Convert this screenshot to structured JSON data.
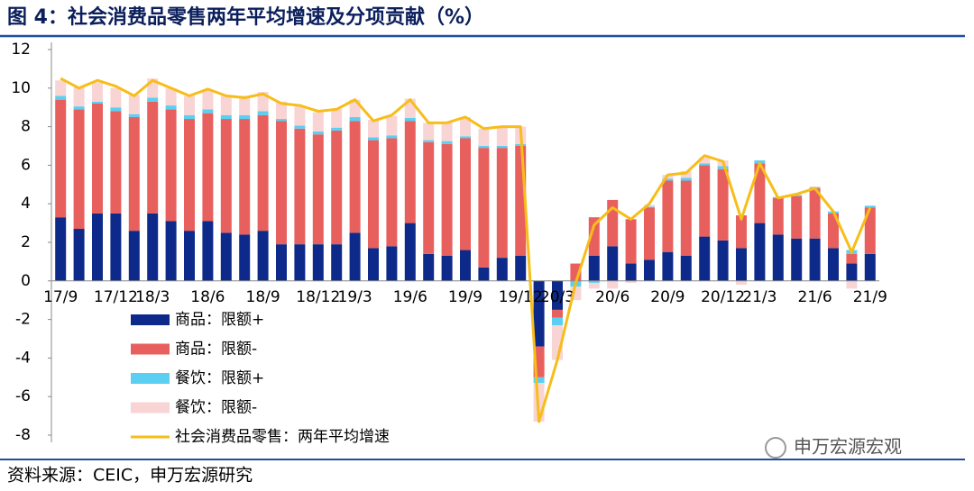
{
  "chart_data": {
    "type": "bar",
    "title": "图 4：社会消费品零售两年平均增速及分项贡献（%）",
    "source": "资料来源：CEIC，申万宏源研究",
    "watermark": "申万宏源宏观",
    "categories": [
      "17/9",
      null,
      null,
      "17/12",
      null,
      "18/3",
      null,
      null,
      "18/6",
      null,
      null,
      "18/9",
      null,
      null,
      "18/12",
      null,
      "19/3",
      null,
      null,
      "19/6",
      null,
      null,
      "19/9",
      null,
      null,
      "19/12",
      null,
      "20/3",
      null,
      null,
      "20/6",
      null,
      null,
      "20/9",
      null,
      null,
      "20/12",
      null,
      "21/3",
      null,
      null,
      "21/6",
      null,
      null,
      "21/9"
    ],
    "ylim": [
      -8,
      12
    ],
    "yticks": [
      -8,
      -6,
      -4,
      -2,
      0,
      2,
      4,
      6,
      8,
      10,
      12
    ],
    "series": [
      {
        "name": "商品：限额+",
        "color": "#0d2a8a",
        "values": [
          3.3,
          2.7,
          3.5,
          3.5,
          2.6,
          3.5,
          3.1,
          2.6,
          3.1,
          2.5,
          2.4,
          2.6,
          1.9,
          1.9,
          1.9,
          1.9,
          2.5,
          1.7,
          1.8,
          3.0,
          1.4,
          1.3,
          1.6,
          0.7,
          1.2,
          1.3,
          -3.4,
          -1.5,
          0,
          1.3,
          1.8,
          0.9,
          1.1,
          1.5,
          1.3,
          2.3,
          2.1,
          1.7,
          3.0,
          2.4,
          2.2,
          2.2,
          1.7,
          0.9,
          1.4
        ]
      },
      {
        "name": "商品：限额-",
        "color": "#e8605e",
        "values": [
          6.1,
          6.2,
          5.7,
          5.3,
          5.9,
          5.8,
          5.8,
          5.8,
          5.6,
          5.9,
          6.0,
          6.0,
          6.4,
          6.0,
          5.7,
          5.9,
          5.8,
          5.6,
          5.6,
          5.3,
          5.8,
          5.8,
          5.8,
          6.2,
          5.7,
          5.7,
          -1.6,
          -0.4,
          0.9,
          2.0,
          2.4,
          2.3,
          2.7,
          3.7,
          3.9,
          3.7,
          3.7,
          1.7,
          3.1,
          1.9,
          2.2,
          2.6,
          1.8,
          0.5,
          2.4
        ]
      },
      {
        "name": "餐饮：限额+",
        "color": "#5acff2",
        "values": [
          0.2,
          0.15,
          0.1,
          0.2,
          0.15,
          0.2,
          0.2,
          0.2,
          0.2,
          0.2,
          0.2,
          0.2,
          0.1,
          0.15,
          0.15,
          0.15,
          0.2,
          0.15,
          0.15,
          0.15,
          0.1,
          0.15,
          0.1,
          0.1,
          0.1,
          0.1,
          -0.3,
          -0.4,
          -0.3,
          -0.1,
          0,
          0,
          0.05,
          0.1,
          0.15,
          0.1,
          0.15,
          0,
          0.15,
          0.05,
          0.05,
          0.05,
          0.1,
          0.2,
          0.1
        ]
      },
      {
        "name": "餐饮：限额-",
        "color": "#f9d4d4",
        "values": [
          0.8,
          1.0,
          1.0,
          1.0,
          1.0,
          1.0,
          0.9,
          1.0,
          1.0,
          1.0,
          1.0,
          1.0,
          0.9,
          1.0,
          1.0,
          1.0,
          0.9,
          0.9,
          1.0,
          1.0,
          0.9,
          1.0,
          1.0,
          0.9,
          1.0,
          0.9,
          -2.0,
          -1.8,
          -0.7,
          -0.3,
          -0.4,
          -0.1,
          0.1,
          0.2,
          0.35,
          0.3,
          0.3,
          -0.2,
          0,
          0,
          0.05,
          0.05,
          0,
          -0.4,
          0
        ]
      },
      {
        "name": "社会消费品零售：两年平均增速",
        "color": "#f7bd18",
        "type": "line",
        "values": [
          10.5,
          10.0,
          10.4,
          10.1,
          9.6,
          10.4,
          10.0,
          9.6,
          9.95,
          9.6,
          9.5,
          9.7,
          9.2,
          9.1,
          8.8,
          8.9,
          9.4,
          8.3,
          8.6,
          9.4,
          8.2,
          8.2,
          8.5,
          7.9,
          8.0,
          8.0,
          -7.3,
          -4.1,
          -0.1,
          2.9,
          3.8,
          3.2,
          4.0,
          5.5,
          5.6,
          6.5,
          6.2,
          3.2,
          6.1,
          4.3,
          4.5,
          4.8,
          3.6,
          1.5,
          3.8
        ]
      }
    ]
  }
}
